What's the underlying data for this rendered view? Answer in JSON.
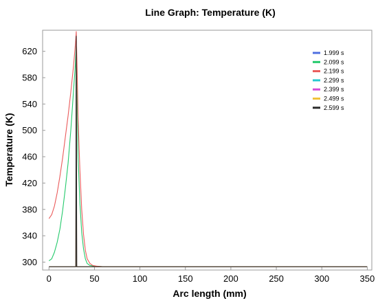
{
  "chart_data": {
    "type": "line",
    "title": "Line Graph: Temperature (K)",
    "xlabel": "Arc length (mm)",
    "ylabel": "Temperature (K)",
    "xlim": [
      -7,
      355
    ],
    "ylim": [
      288,
      652
    ],
    "xticks": [
      0,
      50,
      100,
      150,
      200,
      250,
      300,
      350
    ],
    "yticks": [
      300,
      340,
      380,
      420,
      460,
      500,
      540,
      580,
      620
    ],
    "grid": false,
    "legend_position": "top-right",
    "series": [
      {
        "name": "1.999 s",
        "color": "#4f6fe0",
        "x": [
          0,
          29.5,
          29.8,
          30,
          30.2,
          30.5,
          350
        ],
        "y": [
          293,
          293,
          400,
          460,
          400,
          293,
          293
        ]
      },
      {
        "name": "2.099 s",
        "color": "#22c96a",
        "x": [
          0,
          3,
          6,
          9,
          12,
          15,
          18,
          21,
          24,
          27,
          29,
          30,
          31,
          32,
          34,
          36,
          38,
          40,
          42,
          45,
          50,
          60,
          350
        ],
        "y": [
          302,
          305,
          315,
          330,
          350,
          378,
          412,
          450,
          500,
          560,
          600,
          628,
          560,
          460,
          390,
          345,
          320,
          305,
          298,
          295,
          294,
          293,
          293
        ]
      },
      {
        "name": "2.199 s",
        "color": "#ea5a5a",
        "x": [
          0,
          3,
          6,
          9,
          12,
          15,
          18,
          21,
          24,
          27,
          29,
          30,
          31,
          32,
          34,
          36,
          38,
          40,
          42,
          45,
          48,
          52,
          60,
          350
        ],
        "y": [
          366,
          372,
          385,
          405,
          430,
          458,
          490,
          522,
          558,
          598,
          630,
          650,
          590,
          520,
          440,
          380,
          342,
          318,
          305,
          298,
          295,
          294,
          293,
          293
        ]
      },
      {
        "name": "2.299 s",
        "color": "#27c9cf",
        "x": [
          0,
          29.5,
          29.8,
          30,
          30.2,
          30.5,
          350
        ],
        "y": [
          293,
          293,
          430,
          520,
          430,
          293,
          293
        ]
      },
      {
        "name": "2.399 s",
        "color": "#d44ad8",
        "x": [
          0,
          29.5,
          29.8,
          30,
          30.2,
          30.5,
          350
        ],
        "y": [
          293,
          293,
          480,
          580,
          480,
          293,
          293
        ]
      },
      {
        "name": "2.499 s",
        "color": "#f0c23a",
        "x": [
          0,
          29.5,
          29.8,
          30,
          30.2,
          30.5,
          350
        ],
        "y": [
          293,
          293,
          520,
          610,
          520,
          293,
          293
        ]
      },
      {
        "name": "2.599 s",
        "color": "#2a2a2a",
        "x": [
          0,
          29.5,
          29.8,
          30,
          30.2,
          30.5,
          350
        ],
        "y": [
          293,
          293,
          560,
          643,
          560,
          293,
          293
        ]
      }
    ]
  }
}
